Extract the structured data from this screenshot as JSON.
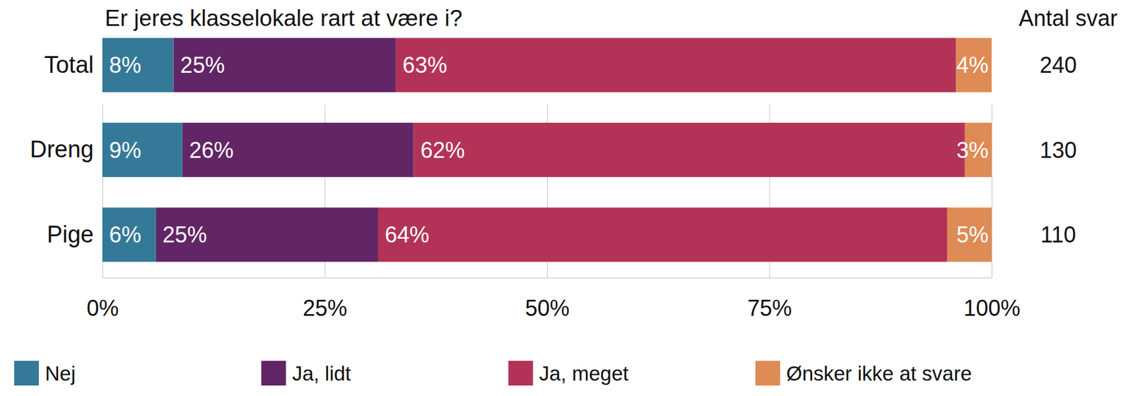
{
  "chart_data": {
    "type": "bar",
    "title": "Er jeres klasselokale rart at være i?",
    "orientation": "horizontal",
    "stacked": true,
    "data_labels": true,
    "grid": true,
    "legend": "bottom",
    "categories": [
      "Total",
      "Dreng",
      "Pige"
    ],
    "series": [
      {
        "name": "Nej",
        "color": "#347a98",
        "values": [
          8,
          9,
          6
        ],
        "value_labels": [
          "8%",
          "9%",
          "6%"
        ]
      },
      {
        "name": "Ja, lidt",
        "color": "#622666",
        "values": [
          25,
          26,
          25
        ],
        "value_labels": [
          "25%",
          "26%",
          "25%"
        ]
      },
      {
        "name": "Ja, meget",
        "color": "#b23357",
        "values": [
          63,
          62,
          64
        ],
        "value_labels": [
          "63%",
          "62%",
          "64%"
        ]
      },
      {
        "name": "Ønsker ikke at svare",
        "color": "#de8b55",
        "values": [
          4,
          3,
          5
        ],
        "value_labels": [
          "4%",
          "3%",
          "5%"
        ]
      }
    ],
    "xlim": [
      0,
      100
    ],
    "xticks": [
      {
        "value": 0,
        "label": "0%"
      },
      {
        "value": 25,
        "label": "25%"
      },
      {
        "value": 50,
        "label": "50%"
      },
      {
        "value": 75,
        "label": "75%"
      },
      {
        "value": 100,
        "label": "100%"
      }
    ],
    "respondents_label": "Antal svar",
    "respondents": [
      240,
      130,
      110
    ]
  }
}
